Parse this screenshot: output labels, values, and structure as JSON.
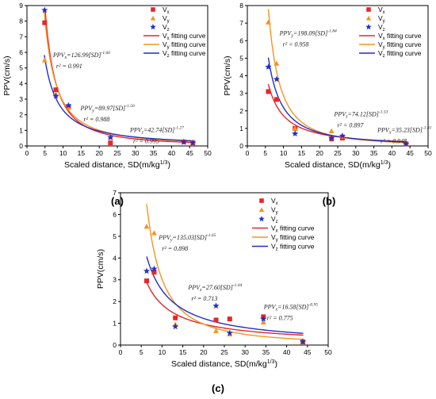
{
  "figure": {
    "panel_labels": [
      "(a)",
      "(b)",
      "(c)"
    ]
  },
  "chart_data": [
    {
      "type": "scatter",
      "panel": "(a)",
      "xlabel": "Scaled distance, SD(m/kg",
      "xlabel_sup": "1/3",
      "xlabel_end": ")",
      "ylabel": "PPV(cm/s)",
      "xlim": [
        0,
        50
      ],
      "ylim": [
        0,
        9
      ],
      "xticks": [
        0,
        5,
        10,
        15,
        20,
        25,
        30,
        35,
        40,
        45,
        50
      ],
      "yticks": [
        0,
        1,
        2,
        3,
        4,
        5,
        6,
        7,
        8,
        9
      ],
      "legend_position": "top-right",
      "series": [
        {
          "name": "V",
          "sub": "x",
          "marker": "square",
          "color": "#e8262a",
          "x": [
            4.9,
            8.0,
            11.5,
            23.1,
            43.4,
            45.9
          ],
          "y": [
            7.9,
            3.6,
            2.5,
            0.2,
            0.26,
            0.2
          ]
        },
        {
          "name": "V",
          "sub": "y",
          "marker": "triangle",
          "color": "#f7931e",
          "x": [
            4.9,
            8.0,
            11.5,
            23.1,
            43.4,
            45.9
          ],
          "y": [
            5.5,
            3.3,
            2.5,
            0.55,
            0.26,
            0.23
          ]
        },
        {
          "name": "V",
          "sub": "z",
          "marker": "star",
          "color": "#1f2fc9",
          "x": [
            4.9,
            8.0,
            11.5,
            23.1,
            43.4,
            45.9
          ],
          "y": [
            8.7,
            3.2,
            2.6,
            0.55,
            0.25,
            0.2
          ]
        }
      ],
      "fits": [
        {
          "name": "V",
          "sub": "x",
          "suffix": " fitting curve",
          "color": "#e8262a",
          "k": 126.99,
          "b": 1.66,
          "xmin": 5.0,
          "xmax": 46.0
        },
        {
          "name": "V",
          "sub": "y",
          "suffix": " fitting curve",
          "color": "#f7931e",
          "k": 89.97,
          "b": 1.5,
          "xmin": 4.7,
          "xmax": 46.0
        },
        {
          "name": "V",
          "sub": "z",
          "suffix": " fitting curve",
          "color": "#1f2fc9",
          "k": 42.74,
          "b": 1.27,
          "xmin": 4.8,
          "xmax": 46.0
        }
      ],
      "annotations": [
        {
          "prefix": "PPV",
          "sub": "x",
          "eq": "=126.99[SD]",
          "exp": "-1.66",
          "r2": "r² = 0.991",
          "x": 7.2,
          "y": 5.7,
          "color": "#e8262a"
        },
        {
          "prefix": "PPV",
          "sub": "y",
          "eq": "=89.97[SD]",
          "exp": "-1.50",
          "r2": "r² = 0.988",
          "x": 14.8,
          "y": 2.3,
          "color": "#f7931e"
        },
        {
          "prefix": "PPV",
          "sub": "z",
          "eq": "=42.74[SD]",
          "exp": "-1.27",
          "r2": "r² = 0.995",
          "x": 28.5,
          "y": 0.9,
          "color": "#1f2fc9"
        }
      ]
    },
    {
      "type": "scatter",
      "panel": "(b)",
      "xlabel": "Scaled distance, SD(m/kg",
      "xlabel_sup": "1/3",
      "xlabel_end": ")",
      "ylabel": "PPV(cm/s)",
      "xlim": [
        0,
        50
      ],
      "ylim": [
        0,
        8
      ],
      "xticks": [
        0,
        5,
        10,
        15,
        20,
        25,
        30,
        35,
        40,
        45,
        50
      ],
      "yticks": [
        0,
        1,
        2,
        3,
        4,
        5,
        6,
        7,
        8
      ],
      "legend_position": "top-right",
      "series": [
        {
          "name": "V",
          "sub": "x",
          "marker": "square",
          "color": "#e8262a",
          "x": [
            5.8,
            8.1,
            13.2,
            23.3,
            26.3,
            43.9
          ],
          "y": [
            3.1,
            2.65,
            1.0,
            0.4,
            0.45,
            0.12
          ]
        },
        {
          "name": "V",
          "sub": "y",
          "marker": "triangle",
          "color": "#f7931e",
          "x": [
            5.8,
            8.1,
            13.2,
            23.3,
            26.3,
            43.9
          ],
          "y": [
            7.05,
            4.7,
            1.0,
            0.85,
            0.55,
            0.15
          ]
        },
        {
          "name": "V",
          "sub": "z",
          "marker": "star",
          "color": "#1f2fc9",
          "x": [
            5.8,
            8.1,
            13.2,
            23.3,
            26.3,
            43.9
          ],
          "y": [
            4.5,
            3.8,
            0.7,
            0.45,
            0.58,
            0.12
          ]
        }
      ],
      "fits": [
        {
          "name": "V",
          "sub": "x",
          "suffix": " fitting curve",
          "color": "#e8262a",
          "k": 35.23,
          "b": 1.31,
          "xmin": 5.8,
          "xmax": 44.0
        },
        {
          "name": "V",
          "sub": "y",
          "suffix": " fitting curve",
          "color": "#f7931e",
          "k": 198.09,
          "b": 1.84,
          "xmin": 5.8,
          "xmax": 44.0
        },
        {
          "name": "V",
          "sub": "z",
          "suffix": " fitting curve",
          "color": "#1f2fc9",
          "k": 74.12,
          "b": 1.53,
          "xmin": 5.8,
          "xmax": 44.0
        }
      ],
      "annotations": [
        {
          "prefix": "PPV",
          "sub": "y",
          "eq": "=198.09[SD]",
          "exp": "-1.84",
          "r2": "r² = 0.958",
          "x": 8.9,
          "y": 6.3,
          "color": "#f7931e"
        },
        {
          "prefix": "PPV",
          "sub": "z",
          "eq": "=74.12[SD]",
          "exp": "-1.53",
          "r2": "r² = 0.897",
          "x": 24.0,
          "y": 1.7,
          "color": "#1f2fc9"
        },
        {
          "prefix": "PPV",
          "sub": "x",
          "eq": "=35.23[SD]",
          "exp": "-1.31",
          "r2": "r² = 0.948",
          "x": 36.0,
          "y": 0.8,
          "color": "#e8262a"
        }
      ]
    },
    {
      "type": "scatter",
      "panel": "(c)",
      "xlabel": "Scaled distance, SD(m/kg",
      "xlabel_sup": "1/3",
      "xlabel_end": ")",
      "ylabel": "PPV(cm/s)",
      "xlim": [
        0,
        50
      ],
      "ylim": [
        0,
        7
      ],
      "xticks": [
        0,
        5,
        10,
        15,
        20,
        25,
        30,
        35,
        40,
        45,
        50
      ],
      "yticks": [
        0,
        1,
        2,
        3,
        4,
        5,
        6,
        7
      ],
      "legend_position": "top-right",
      "series": [
        {
          "name": "V",
          "sub": "x",
          "marker": "square",
          "color": "#e8262a",
          "x": [
            6.3,
            8.1,
            13.2,
            23.0,
            26.3,
            34.4,
            43.9
          ],
          "y": [
            2.95,
            3.35,
            1.25,
            1.15,
            1.2,
            1.3,
            0.15
          ]
        },
        {
          "name": "V",
          "sub": "y",
          "marker": "triangle",
          "color": "#f7931e",
          "x": [
            6.3,
            8.1,
            13.2,
            23.0,
            26.3,
            34.4,
            43.9
          ],
          "y": [
            5.45,
            5.15,
            0.95,
            0.65,
            0.5,
            1.05,
            0.2
          ]
        },
        {
          "name": "V",
          "sub": "z",
          "marker": "star",
          "color": "#1f2fc9",
          "x": [
            6.3,
            8.1,
            13.2,
            23.0,
            26.3,
            34.4,
            43.9
          ],
          "y": [
            3.4,
            3.5,
            0.85,
            1.8,
            0.55,
            1.2,
            0.15
          ]
        }
      ],
      "fits": [
        {
          "name": "V",
          "sub": "x",
          "suffix": " fitting curve",
          "color": "#e8262a",
          "k": 16.58,
          "b": 0.95,
          "xmin": 6.3,
          "xmax": 44.0
        },
        {
          "name": "V",
          "sub": "y",
          "suffix": " fitting curve",
          "color": "#f7931e",
          "k": 135.03,
          "b": 1.65,
          "xmin": 6.3,
          "xmax": 44.0
        },
        {
          "name": "V",
          "sub": "z",
          "suffix": " fitting curve",
          "color": "#1f2fc9",
          "k": 27.6,
          "b": 1.04,
          "xmin": 6.3,
          "xmax": 44.0
        }
      ],
      "annotations": [
        {
          "prefix": "PPV",
          "sub": "y",
          "eq": "=135.03[SD]",
          "exp": "-1.65",
          "r2": "r² = 0.898",
          "x": 9.2,
          "y": 4.85,
          "color": "#f7931e"
        },
        {
          "prefix": "PPV",
          "sub": "z",
          "eq": "=27.60[SD]",
          "exp": "-1.04",
          "r2": "r² = 0.713",
          "x": 16.3,
          "y": 2.55,
          "color": "#1f2fc9"
        },
        {
          "prefix": "PPV",
          "sub": "x",
          "eq": "=16.58[SD]",
          "exp": "-0.95",
          "r2": "r² = 0.775",
          "x": 34.5,
          "y": 1.65,
          "color": "#e8262a"
        }
      ]
    }
  ]
}
